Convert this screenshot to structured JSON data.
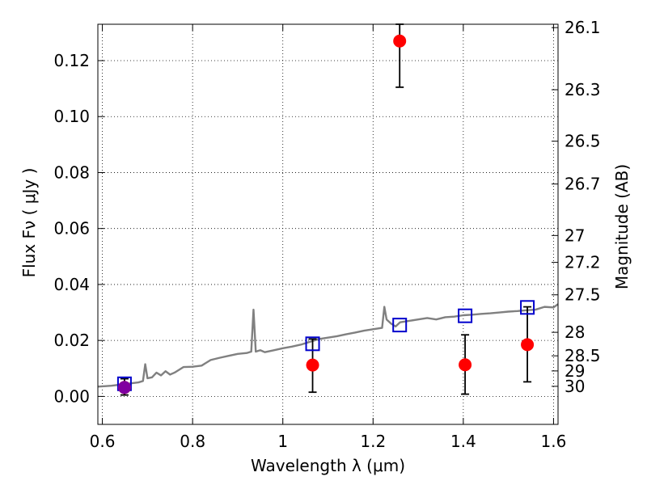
{
  "chart_data": {
    "type": "scatter",
    "title": "",
    "xlabel": "Wavelength  λ (μm)",
    "ylabel": "Flux  Fν  ( μJy )",
    "ylabel_right": "Magnitude (AB)",
    "xlim": [
      0.59,
      1.61
    ],
    "ylim": [
      -0.01,
      0.133
    ],
    "grid": true,
    "x_ticks": [
      0.6,
      0.8,
      1.0,
      1.2,
      1.4,
      1.6
    ],
    "x_tick_labels": [
      "0.6",
      "0.8",
      "1",
      "1.2",
      "1.4",
      "1.6"
    ],
    "y_ticks": [
      0.0,
      0.02,
      0.04,
      0.06,
      0.08,
      0.1,
      0.12
    ],
    "y_tick_labels": [
      "0.00",
      "0.02",
      "0.04",
      "0.06",
      "0.08",
      "0.10",
      "0.12"
    ],
    "right_ticks": [
      {
        "label": "26.1",
        "flux": 0.1318
      },
      {
        "label": "26.3",
        "flux": 0.1096
      },
      {
        "label": "26.5",
        "flux": 0.0912
      },
      {
        "label": "26.7",
        "flux": 0.0759
      },
      {
        "label": "27",
        "flux": 0.0575
      },
      {
        "label": "27.2",
        "flux": 0.0479
      },
      {
        "label": "27.5",
        "flux": 0.0363
      },
      {
        "label": "28",
        "flux": 0.0229
      },
      {
        "label": "28.5",
        "flux": 0.0145
      },
      {
        "label": "29",
        "flux": 0.0091
      },
      {
        "label": "30",
        "flux": 0.0036
      }
    ],
    "series": [
      {
        "kind": "line",
        "color": "#808080",
        "x": [
          0.59,
          0.6,
          0.62,
          0.64,
          0.66,
          0.68,
          0.69,
          0.695,
          0.7,
          0.71,
          0.72,
          0.73,
          0.74,
          0.75,
          0.76,
          0.78,
          0.8,
          0.82,
          0.84,
          0.86,
          0.88,
          0.9,
          0.92,
          0.93,
          0.935,
          0.94,
          0.95,
          0.96,
          0.98,
          1.0,
          1.02,
          1.04,
          1.06,
          1.08,
          1.1,
          1.12,
          1.14,
          1.16,
          1.18,
          1.2,
          1.22,
          1.225,
          1.23,
          1.24,
          1.25,
          1.26,
          1.28,
          1.3,
          1.32,
          1.34,
          1.36,
          1.38,
          1.4,
          1.42,
          1.44,
          1.46,
          1.48,
          1.5,
          1.52,
          1.54,
          1.56,
          1.58,
          1.6,
          1.61
        ],
        "y": [
          0.0035,
          0.0036,
          0.0038,
          0.0042,
          0.0046,
          0.005,
          0.0055,
          0.0115,
          0.0065,
          0.0068,
          0.0085,
          0.0075,
          0.009,
          0.0078,
          0.0085,
          0.0105,
          0.0106,
          0.011,
          0.013,
          0.0138,
          0.0145,
          0.0152,
          0.0155,
          0.016,
          0.031,
          0.016,
          0.0165,
          0.0158,
          0.0165,
          0.0172,
          0.0178,
          0.0185,
          0.0195,
          0.0205,
          0.021,
          0.0215,
          0.0222,
          0.0228,
          0.0235,
          0.024,
          0.0245,
          0.032,
          0.0275,
          0.026,
          0.025,
          0.0265,
          0.027,
          0.0275,
          0.028,
          0.0275,
          0.0283,
          0.0285,
          0.029,
          0.0292,
          0.0295,
          0.0297,
          0.03,
          0.0303,
          0.0305,
          0.0308,
          0.031,
          0.032,
          0.0318,
          0.033
        ]
      },
      {
        "kind": "markers",
        "marker": "circle",
        "color": "#ff0000",
        "points": [
          {
            "x": 0.649,
            "y": 0.0032,
            "lo": 0.0005,
            "hi": 0.0063
          },
          {
            "x": 1.066,
            "y": 0.0112,
            "lo": 0.0015,
            "hi": 0.0205
          },
          {
            "x": 1.259,
            "y": 0.127,
            "lo": 0.1105,
            "hi": 0.134
          },
          {
            "x": 1.404,
            "y": 0.0113,
            "lo": 0.0008,
            "hi": 0.022
          },
          {
            "x": 1.542,
            "y": 0.0185,
            "lo": 0.0052,
            "hi": 0.032
          }
        ]
      },
      {
        "kind": "markers",
        "marker": "square",
        "color": "#0000cc",
        "points": [
          {
            "x": 0.649,
            "y": 0.0045
          },
          {
            "x": 1.066,
            "y": 0.0188
          },
          {
            "x": 1.259,
            "y": 0.0255
          },
          {
            "x": 1.404,
            "y": 0.0288
          },
          {
            "x": 1.542,
            "y": 0.0318
          }
        ]
      }
    ],
    "highlight_marker": {
      "x": 0.649,
      "y": 0.0032,
      "color": "#8000a0"
    }
  }
}
